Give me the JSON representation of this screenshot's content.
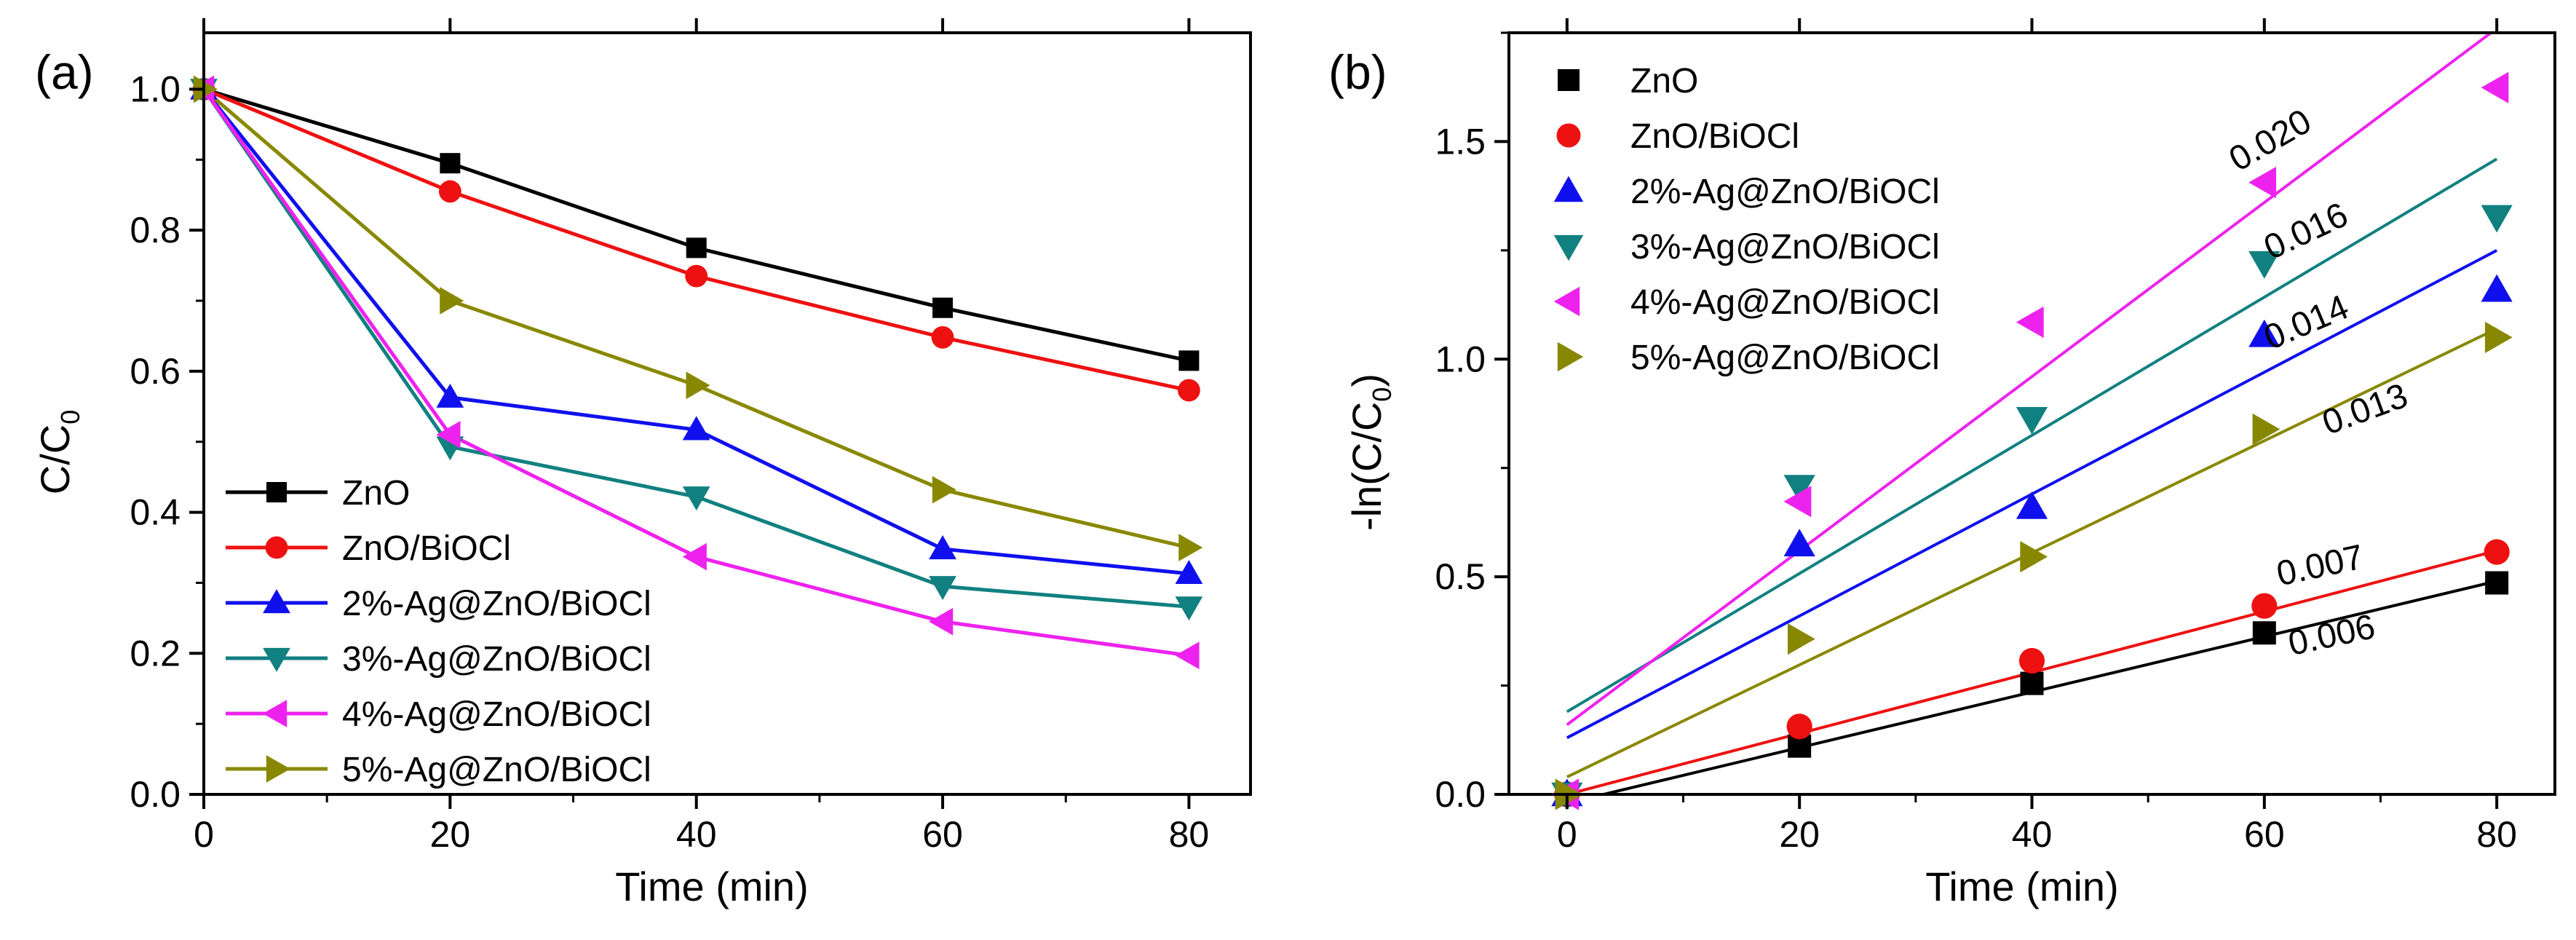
{
  "chart_data": [
    {
      "panel_label": "(a)",
      "type": "line",
      "xlabel": "Time (min)",
      "ylabel_main": "C/C",
      "ylabel_sub": "0",
      "xlim": [
        0,
        85
      ],
      "ylim": [
        0,
        1.08
      ],
      "x_ticks": [
        0,
        20,
        40,
        60,
        80
      ],
      "x_tick_labels": [
        "0",
        "20",
        "40",
        "60",
        "80"
      ],
      "y_ticks": [
        0,
        0.2,
        0.4,
        0.6,
        0.8,
        1.0
      ],
      "y_tick_labels": [
        "0.0",
        "0.2",
        "0.4",
        "0.6",
        "0.8",
        "1.0"
      ],
      "legend_position": "bottom-left",
      "x": [
        0,
        20,
        40,
        60,
        80
      ],
      "series": [
        {
          "name": "ZnO",
          "color": "#000000",
          "marker": "square",
          "values": [
            1.0,
            0.895,
            0.775,
            0.69,
            0.615
          ]
        },
        {
          "name": "ZnO/BiOCl",
          "color": "#ee1111",
          "marker": "circle",
          "values": [
            1.0,
            0.855,
            0.735,
            0.648,
            0.573
          ]
        },
        {
          "name": "2%-Ag@ZnO/BiOCl",
          "color": "#1010ee",
          "marker": "triangle-up",
          "values": [
            1.0,
            0.563,
            0.517,
            0.348,
            0.313
          ]
        },
        {
          "name": "3%-Ag@ZnO/BiOCl",
          "color": "#118080",
          "marker": "triangle-down",
          "values": [
            1.0,
            0.493,
            0.422,
            0.295,
            0.266
          ]
        },
        {
          "name": "4%-Ag@ZnO/BiOCl",
          "color": "#ee22ee",
          "marker": "triangle-left",
          "values": [
            1.0,
            0.51,
            0.337,
            0.245,
            0.197
          ]
        },
        {
          "name": "5%-Ag@ZnO/BiOCl",
          "color": "#888800",
          "marker": "triangle-right",
          "values": [
            1.0,
            0.7,
            0.58,
            0.432,
            0.35
          ]
        }
      ]
    },
    {
      "panel_label": "(b)",
      "type": "scatter",
      "xlabel": "Time (min)",
      "ylabel_main": "-ln(C/C",
      "ylabel_sub": "0",
      "ylabel_end": ")",
      "xlim": [
        -5,
        85
      ],
      "ylim": [
        0,
        1.75
      ],
      "x_ticks": [
        0,
        20,
        40,
        60,
        80
      ],
      "x_tick_labels": [
        "0",
        "20",
        "40",
        "60",
        "80"
      ],
      "y_ticks": [
        0,
        0.5,
        1.0,
        1.5
      ],
      "y_tick_labels": [
        "0.0",
        "0.5",
        "1.0",
        "1.5"
      ],
      "legend_position": "top-left",
      "x": [
        0,
        20,
        40,
        60,
        80
      ],
      "series": [
        {
          "name": "ZnO",
          "color": "#000000",
          "marker": "square",
          "values": [
            0.0,
            0.111,
            0.255,
            0.371,
            0.486
          ],
          "fit": [
            -0.02,
            0.49
          ],
          "slope_label": "0.006",
          "label_at": [
            66,
            0.34
          ],
          "label_angle": -12
        },
        {
          "name": "ZnO/BiOCl",
          "color": "#ee1111",
          "marker": "circle",
          "values": [
            0.0,
            0.156,
            0.307,
            0.433,
            0.557
          ],
          "fit": [
            0.0,
            0.56
          ],
          "slope_label": "0.007",
          "label_at": [
            65,
            0.5
          ],
          "label_angle": -12
        },
        {
          "name": "2%-Ag@ZnO/BiOCl",
          "color": "#1010ee",
          "marker": "triangle-up",
          "values": [
            0.0,
            0.574,
            0.66,
            1.055,
            1.159
          ],
          "fit": [
            0.13,
            1.25
          ],
          "slope_label": "0.014",
          "label_at": [
            64,
            1.06
          ],
          "label_angle": -23
        },
        {
          "name": "3%-Ag@ZnO/BiOCl",
          "color": "#118080",
          "marker": "triangle-down",
          "values": [
            0.0,
            0.707,
            0.863,
            1.221,
            1.327
          ],
          "fit": [
            0.19,
            1.46
          ],
          "slope_label": "0.016",
          "label_at": [
            64,
            1.27
          ],
          "label_angle": -25
        },
        {
          "name": "4%-Ag@ZnO/BiOCl",
          "color": "#ee22ee",
          "marker": "triangle-left",
          "values": [
            0.0,
            0.673,
            1.085,
            1.406,
            1.624
          ],
          "fit": [
            0.16,
            1.76
          ],
          "slope_label": "0.020",
          "label_at": [
            61,
            1.48
          ],
          "label_angle": -30
        },
        {
          "name": "5%-Ag@ZnO/BiOCl",
          "color": "#888800",
          "marker": "triangle-right",
          "values": [
            0.0,
            0.357,
            0.546,
            0.839,
            1.05
          ],
          "fit": [
            0.04,
            1.07
          ],
          "slope_label": "0.013",
          "label_at": [
            69,
            0.86
          ],
          "label_angle": -20
        }
      ]
    }
  ]
}
